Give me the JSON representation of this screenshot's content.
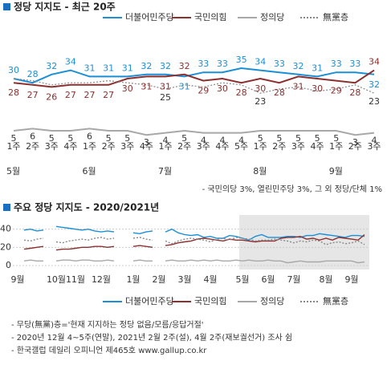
{
  "chart_data": [
    {
      "type": "line",
      "title": "정당 지지도 - 최근 20주",
      "categories": [
        "1주",
        "2주",
        "3주",
        "4주",
        "1주",
        "2주",
        "3주",
        "4주",
        "1주",
        "2주",
        "3주",
        "4주",
        "5주",
        "1주",
        "2주",
        "3주",
        "4주",
        "1주",
        "2주",
        "3주"
      ],
      "month_labels": [
        "5월",
        null,
        null,
        null,
        "6월",
        null,
        null,
        null,
        "7월",
        null,
        null,
        null,
        null,
        "8월",
        null,
        null,
        null,
        "9월",
        null,
        null
      ],
      "ylim": [
        0,
        40
      ],
      "series": [
        {
          "name": "더불어민주당",
          "color": "#1b8fd6",
          "values": [
            30,
            28,
            32,
            34,
            31,
            31,
            31,
            32,
            32,
            31,
            33,
            33,
            35,
            34,
            33,
            32,
            31,
            33,
            33,
            32
          ]
        },
        {
          "name": "국민의힘",
          "color": "#8b2f2f",
          "values": [
            28,
            27,
            26,
            27,
            27,
            27,
            30,
            31,
            31,
            32,
            29,
            30,
            28,
            30,
            28,
            31,
            30,
            29,
            28,
            34
          ]
        },
        {
          "name": "정의당",
          "color": "#a8a8a8",
          "values": [
            5,
            6,
            5,
            5,
            6,
            5,
            5,
            3,
            4,
            5,
            4,
            4,
            4,
            5,
            5,
            5,
            5,
            5,
            3,
            4
          ]
        },
        {
          "name": "無黨층",
          "color": "#888888",
          "dash": true,
          "values": [
            30,
            29,
            27,
            28,
            28,
            29,
            28,
            27,
            25,
            27,
            26,
            28,
            27,
            23,
            25,
            26,
            24,
            25,
            27,
            23
          ],
          "value_labels": [
            null,
            null,
            null,
            null,
            null,
            null,
            null,
            null,
            "25",
            null,
            null,
            null,
            null,
            "23",
            null,
            null,
            null,
            null,
            null,
            "23"
          ]
        }
      ],
      "footnote": "- 국민의당 3%, 열린민주당 3%, 그 외 정당/단체 1%"
    },
    {
      "type": "line",
      "title": "주요 정당 지지도 - 2020/2021년",
      "categories": [
        "9월",
        null,
        null,
        null,
        null,
        null,
        "10월",
        null,
        null,
        "11월",
        null,
        null,
        null,
        "12월",
        null,
        null,
        null,
        null,
        "1월",
        null,
        null,
        null,
        "2월",
        null,
        null,
        null,
        "3월",
        null,
        null,
        null,
        "4월",
        null,
        null,
        null,
        null,
        "5월",
        null,
        null,
        null,
        "6월",
        null,
        null,
        null,
        "7월",
        null,
        null,
        null,
        null,
        "8월",
        null,
        null,
        null,
        "9월",
        null,
        null
      ],
      "ylim": [
        0,
        45
      ],
      "yticks": [
        0,
        20,
        40
      ],
      "grid": true,
      "series": [
        {
          "name": "더불어민주당",
          "color": "#1b8fd6",
          "values": [
            null,
            39,
            40,
            38,
            39,
            null,
            43,
            42,
            41,
            40,
            39,
            40,
            38,
            37,
            38,
            37,
            null,
            null,
            36,
            35,
            37,
            38,
            null,
            37,
            40,
            36,
            34,
            33,
            34,
            31,
            32,
            30,
            30,
            33,
            32,
            30,
            28,
            32,
            34,
            31,
            31,
            31,
            32,
            32,
            31,
            33,
            33,
            35,
            34,
            33,
            32,
            31,
            33,
            33,
            32
          ]
        },
        {
          "name": "국민의힘",
          "color": "#8b2f2f",
          "values": [
            null,
            18,
            19,
            20,
            21,
            null,
            17,
            18,
            18,
            19,
            20,
            20,
            21,
            21,
            20,
            21,
            null,
            null,
            21,
            22,
            21,
            20,
            null,
            22,
            23,
            25,
            26,
            27,
            29,
            30,
            29,
            28,
            27,
            29,
            28,
            28,
            27,
            26,
            27,
            27,
            27,
            30,
            31,
            31,
            32,
            29,
            30,
            28,
            30,
            28,
            31,
            30,
            29,
            28,
            34
          ]
        },
        {
          "name": "정의당",
          "color": "#a8a8a8",
          "values": [
            null,
            5,
            6,
            5,
            5,
            null,
            5,
            6,
            6,
            5,
            6,
            6,
            5,
            5,
            6,
            5,
            null,
            null,
            5,
            6,
            5,
            5,
            null,
            5,
            6,
            5,
            5,
            6,
            5,
            6,
            5,
            6,
            5,
            5,
            6,
            5,
            6,
            5,
            5,
            6,
            5,
            5,
            3,
            4,
            5,
            4,
            4,
            4,
            5,
            5,
            5,
            5,
            5,
            3,
            4
          ]
        },
        {
          "name": "無黨층",
          "color": "#888888",
          "dash": true,
          "values": [
            null,
            28,
            27,
            29,
            30,
            null,
            26,
            25,
            27,
            28,
            29,
            28,
            30,
            31,
            29,
            30,
            null,
            null,
            30,
            31,
            29,
            28,
            null,
            27,
            24,
            27,
            29,
            30,
            29,
            28,
            26,
            29,
            30,
            28,
            31,
            30,
            29,
            27,
            28,
            28,
            29,
            28,
            27,
            25,
            27,
            26,
            28,
            27,
            23,
            25,
            26,
            24,
            25,
            27,
            23
          ]
        }
      ],
      "notes": [
        "- 무당(無黨)층='현재 지지하는 정당 없음/모름/응답거절'",
        "- 2020년 12월 4~5주(연말), 2021년 2월 2주(설), 4월 2주(재보궐선거) 조사 쉼",
        "- 한국갤럽 데일리 오피니언 제465호 www.gallup.co.kr"
      ]
    }
  ]
}
